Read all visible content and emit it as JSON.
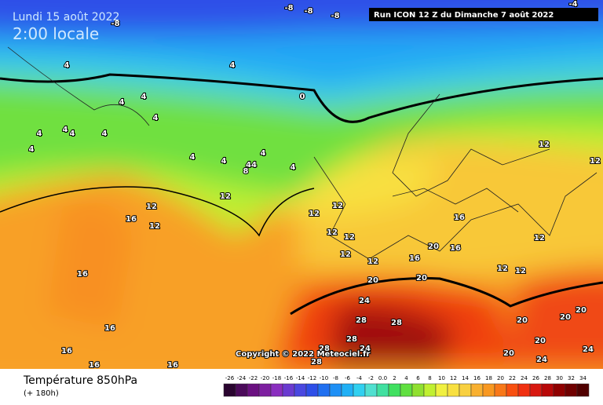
{
  "header": {
    "date": "Lundi 15 août 2022",
    "time": "2:00 locale",
    "run": "Run ICON 12 Z du Dimanche 7 août 2022"
  },
  "footer": {
    "title": "Température 850hPa",
    "lead": "(+ 180h)",
    "copyright": "Copyright © 2022 Meteociel.fr"
  },
  "legend": {
    "labels": [
      "-26",
      "-24",
      "-22",
      "-20",
      "-18",
      "-16",
      "-14",
      "-12",
      "-10",
      "-8",
      "-6",
      "-4",
      "-2",
      "0.0",
      "2",
      "4",
      "6",
      "8",
      "10",
      "12",
      "14",
      "16",
      "18",
      "20",
      "22",
      "24",
      "26",
      "28",
      "30",
      "32",
      "34"
    ],
    "colors": [
      "#2a0530",
      "#4b0a5a",
      "#6a1080",
      "#7d1fa0",
      "#8a2ebf",
      "#6a3bd0",
      "#4a48e0",
      "#2e4fe8",
      "#2070f0",
      "#1e90f5",
      "#20b0f5",
      "#30d0f0",
      "#50e0d0",
      "#40e0a0",
      "#40e060",
      "#60e040",
      "#90e030",
      "#c0f030",
      "#f0f040",
      "#f8e040",
      "#f8d040",
      "#f8b030",
      "#f89820",
      "#f87818",
      "#f85010",
      "#f03010",
      "#d81810",
      "#b80808",
      "#900000",
      "#700000",
      "#500000"
    ]
  },
  "map": {
    "labels": [
      "-8",
      "-8",
      "-8",
      "-8",
      "-4",
      "4",
      "4",
      "0",
      "4",
      "4",
      "4",
      "4",
      "4",
      "4",
      "4",
      "4",
      "4",
      "4",
      "4",
      "44",
      "4",
      "8",
      "12",
      "12",
      "12",
      "12",
      "12",
      "12",
      "12",
      "12",
      "12",
      "12",
      "12",
      "12",
      "12",
      "12",
      "16",
      "16",
      "16",
      "16",
      "16",
      "16",
      "16",
      "16",
      "16",
      "20",
      "20",
      "20",
      "20",
      "20",
      "20",
      "20",
      "20",
      "24",
      "24",
      "24",
      "24",
      "28",
      "28",
      "28",
      "28",
      "28"
    ]
  }
}
